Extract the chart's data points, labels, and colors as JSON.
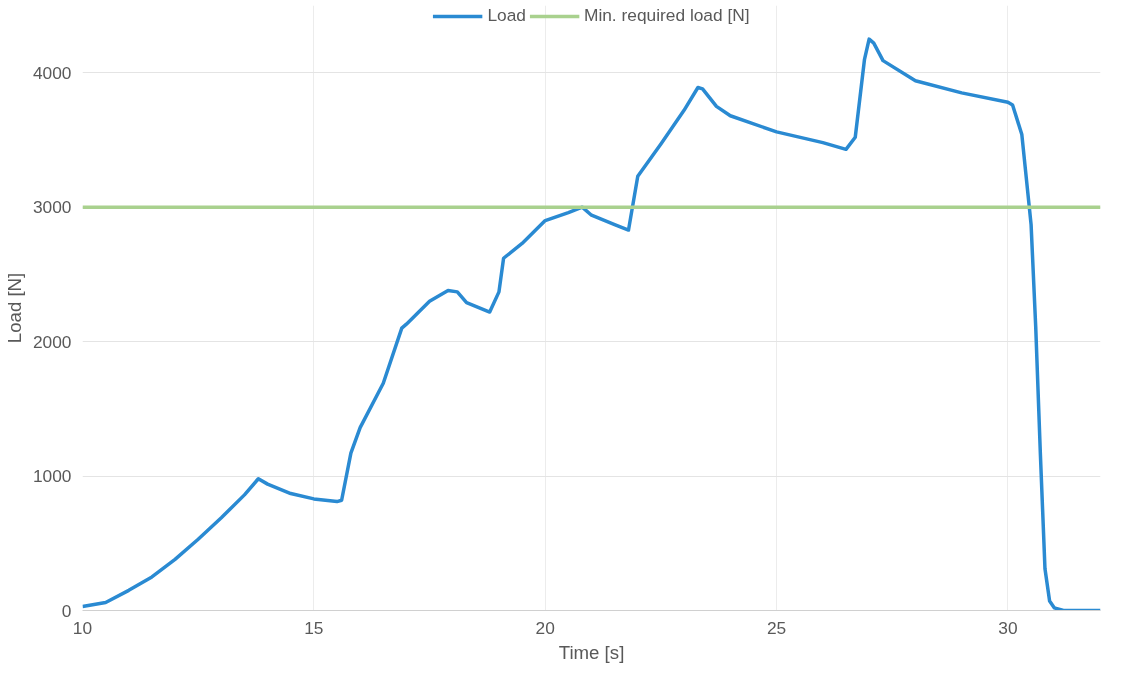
{
  "chart_data": {
    "type": "line",
    "xlabel": "Time [s]",
    "ylabel": "Load [N]",
    "xlim": [
      10,
      32
    ],
    "ylim": [
      0,
      4500
    ],
    "xticks": [
      10,
      15,
      20,
      25,
      30
    ],
    "yticks": [
      0,
      1000,
      2000,
      3000,
      4000
    ],
    "grid": true,
    "legend": "top",
    "marker": "none",
    "line_style": "solid",
    "series": [
      {
        "name": "Load",
        "color": "#2a8ad2",
        "x": [
          10,
          10.5,
          11,
          11.5,
          12,
          12.5,
          13,
          13.5,
          13.8,
          14,
          14.5,
          15,
          15.5,
          15.6,
          15.8,
          16,
          16.5,
          16.9,
          17,
          17.5,
          17.9,
          18.1,
          18.3,
          18.8,
          19,
          19.1,
          19.5,
          20,
          20.5,
          20.8,
          21,
          21.5,
          21.8,
          22,
          22.5,
          23,
          23.3,
          23.4,
          23.7,
          24,
          25,
          26,
          26.5,
          26.7,
          26.9,
          27,
          27.1,
          27.3,
          28,
          29,
          30,
          30.1,
          30.3,
          30.5,
          30.6,
          30.7,
          30.8,
          30.9,
          31,
          31.2,
          32
        ],
        "values": [
          30,
          60,
          150,
          250,
          380,
          530,
          690,
          860,
          980,
          940,
          870,
          830,
          810,
          820,
          1170,
          1360,
          1690,
          2100,
          2130,
          2300,
          2380,
          2370,
          2290,
          2220,
          2370,
          2620,
          2730,
          2900,
          2960,
          3000,
          2940,
          2870,
          2830,
          3230,
          3470,
          3720,
          3890,
          3880,
          3750,
          3680,
          3560,
          3480,
          3430,
          3520,
          4100,
          4250,
          4220,
          4090,
          3940,
          3850,
          3780,
          3760,
          3540,
          2870,
          2110,
          1170,
          310,
          70,
          20,
          0,
          0
        ]
      },
      {
        "name": "Min. required load [N]",
        "color": "#a9d18e",
        "x": [
          10,
          32
        ],
        "values": [
          3000,
          3000
        ]
      }
    ]
  }
}
